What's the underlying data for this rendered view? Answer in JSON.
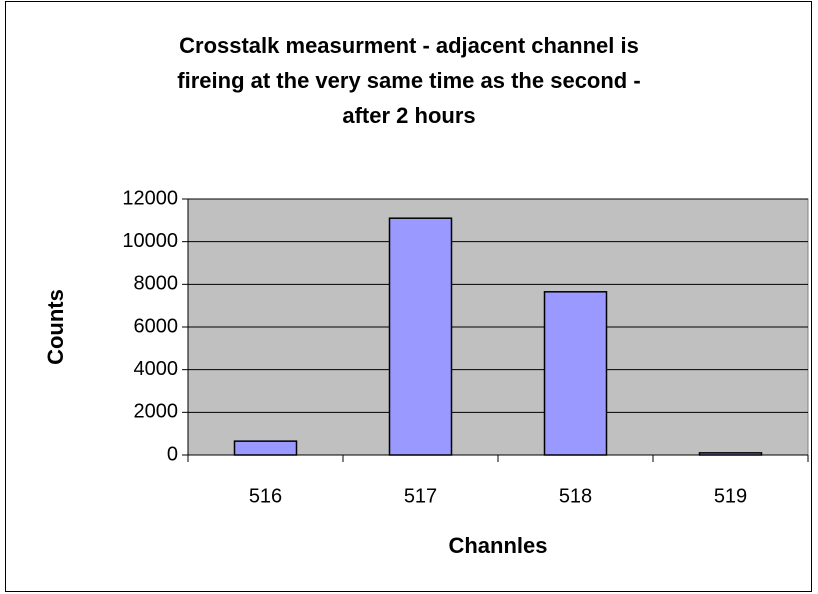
{
  "chart_data": {
    "type": "bar",
    "title": "Crosstalk measurment - adjacent channel is\nfireing at the very same time as the second -\nafter 2 hours",
    "x_label": "Channles",
    "y_label": "Counts",
    "categories": [
      "516",
      "517",
      "518",
      "519"
    ],
    "values": [
      650,
      11100,
      7650,
      100
    ],
    "color": "#9999ff",
    "ylim": [
      0,
      12000
    ],
    "yticks": [
      0,
      2000,
      4000,
      6000,
      8000,
      10000,
      12000
    ],
    "grid": true
  }
}
